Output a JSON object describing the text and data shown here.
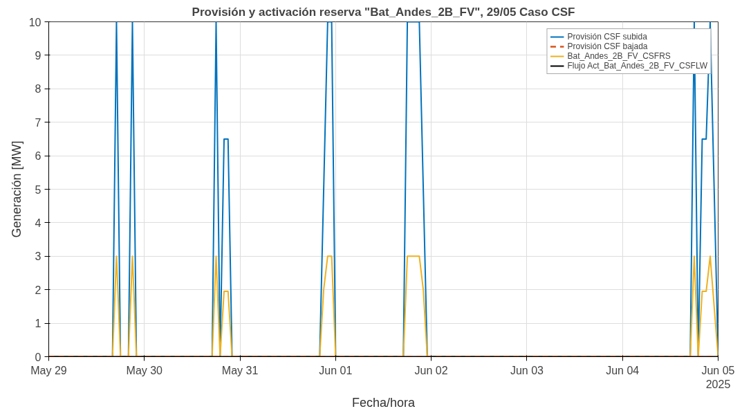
{
  "chart_data": {
    "type": "line",
    "title": "Provisión y activación reserva \"Bat_Andes_2B_FV\", 29/05 Caso CSF",
    "xlabel": "Fecha/hora",
    "ylabel": "Generación [MW]",
    "xlim": [
      "2025-05-29T00:00",
      "2025-06-05T00:00"
    ],
    "xticks": [
      {
        "value": "2025-05-29",
        "label": "May 29"
      },
      {
        "value": "2025-05-30",
        "label": "May 30"
      },
      {
        "value": "2025-05-31",
        "label": "May 31"
      },
      {
        "value": "2025-06-01",
        "label": "Jun 01"
      },
      {
        "value": "2025-06-02",
        "label": "Jun 02"
      },
      {
        "value": "2025-06-03",
        "label": "Jun 03"
      },
      {
        "value": "2025-06-04",
        "label": "Jun 04"
      },
      {
        "value": "2025-06-05",
        "label": "Jun 05\n2025"
      }
    ],
    "ylim": [
      0,
      10
    ],
    "yticks": [
      0,
      1,
      2,
      3,
      4,
      5,
      6,
      7,
      8,
      9,
      10
    ],
    "grid": true,
    "legend": "top right",
    "marker": "none",
    "series": [
      {
        "name": "Provisión CSF subida",
        "color": "#0072bd",
        "line_style": "solid",
        "x": [
          "2025-05-29T00:00",
          "2025-05-29T16:00",
          "2025-05-29T17:00",
          "2025-05-29T18:00",
          "2025-05-29T20:00",
          "2025-05-29T21:00",
          "2025-05-29T22:00",
          "2025-05-30T17:00",
          "2025-05-30T18:00",
          "2025-05-30T19:00",
          "2025-05-30T20:00",
          "2025-05-30T21:00",
          "2025-05-30T22:00",
          "2025-05-31T20:00",
          "2025-05-31T22:00",
          "2025-05-31T23:00",
          "2025-06-01T00:00",
          "2025-06-01T17:00",
          "2025-06-01T18:00",
          "2025-06-01T21:00",
          "2025-06-01T23:00",
          "2025-06-04T17:00",
          "2025-06-04T18:00",
          "2025-06-04T19:00",
          "2025-06-04T20:00",
          "2025-06-04T21:00",
          "2025-06-04T22:00",
          "2025-06-05T00:00"
        ],
        "values": [
          0,
          0,
          10,
          0,
          0,
          10,
          0,
          0,
          10,
          0,
          6.5,
          6.5,
          0,
          0,
          10,
          10,
          0,
          0,
          10,
          10,
          0,
          0,
          10,
          0,
          6.5,
          6.5,
          10,
          0
        ]
      },
      {
        "name": "Provisión CSF bajada",
        "color": "#d95319",
        "line_style": "dashed",
        "x": [
          "2025-05-29T00:00",
          "2025-06-05T00:00"
        ],
        "values": [
          0,
          0
        ]
      },
      {
        "name": "Bat_Andes_2B_FV_CSFRS",
        "color": "#edb120",
        "line_style": "solid",
        "x": [
          "2025-05-29T00:00",
          "2025-05-29T16:00",
          "2025-05-29T17:00",
          "2025-05-29T18:00",
          "2025-05-29T20:00",
          "2025-05-29T21:00",
          "2025-05-29T22:00",
          "2025-05-30T17:00",
          "2025-05-30T18:00",
          "2025-05-30T19:00",
          "2025-05-30T20:00",
          "2025-05-30T21:00",
          "2025-05-30T22:00",
          "2025-05-31T20:00",
          "2025-05-31T21:00",
          "2025-05-31T22:00",
          "2025-05-31T23:00",
          "2025-06-01T00:00",
          "2025-06-01T17:00",
          "2025-06-01T18:00",
          "2025-06-01T21:00",
          "2025-06-01T22:00",
          "2025-06-01T23:00",
          "2025-06-04T17:00",
          "2025-06-04T18:00",
          "2025-06-04T19:00",
          "2025-06-04T20:00",
          "2025-06-04T21:00",
          "2025-06-04T22:00",
          "2025-06-05T00:00"
        ],
        "values": [
          0,
          0,
          3,
          0,
          0,
          3,
          0,
          0,
          3,
          0,
          1.95,
          1.95,
          0,
          0,
          2,
          3,
          3,
          0,
          0,
          3,
          3,
          2,
          0,
          0,
          3,
          0,
          1.95,
          1.95,
          3,
          0
        ]
      },
      {
        "name": "Flujo Act_Bat_Andes_2B_FV_CSFLW",
        "color": "#000000",
        "line_style": "solid",
        "x": [
          "2025-05-29T00:00",
          "2025-06-05T00:00"
        ],
        "values": [
          0,
          0
        ]
      }
    ]
  }
}
